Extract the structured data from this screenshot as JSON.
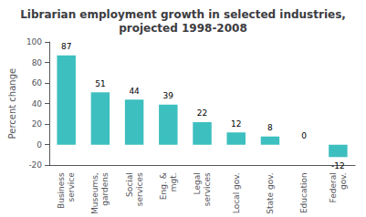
{
  "chart_data": {
    "type": "bar",
    "title": "Librarian employment growth in selected industries,\nprojected 1998-2008",
    "categories": [
      "Business\nservice",
      "Museums,\ngardens",
      "Social\nservices",
      "Eng. &\nmgt.",
      "Legal\nservices",
      "Local gov.",
      "State gov.",
      "Education",
      "Federal\ngov."
    ],
    "values": [
      87,
      51,
      44,
      39,
      22,
      12,
      8,
      0,
      -12
    ],
    "color": "#3dbfbf",
    "ylabel": "Percent change",
    "ylim": [
      -20,
      100
    ],
    "yticks": [
      -20,
      0,
      20,
      40,
      60,
      80,
      100
    ],
    "data_labels": true,
    "grid": false
  }
}
